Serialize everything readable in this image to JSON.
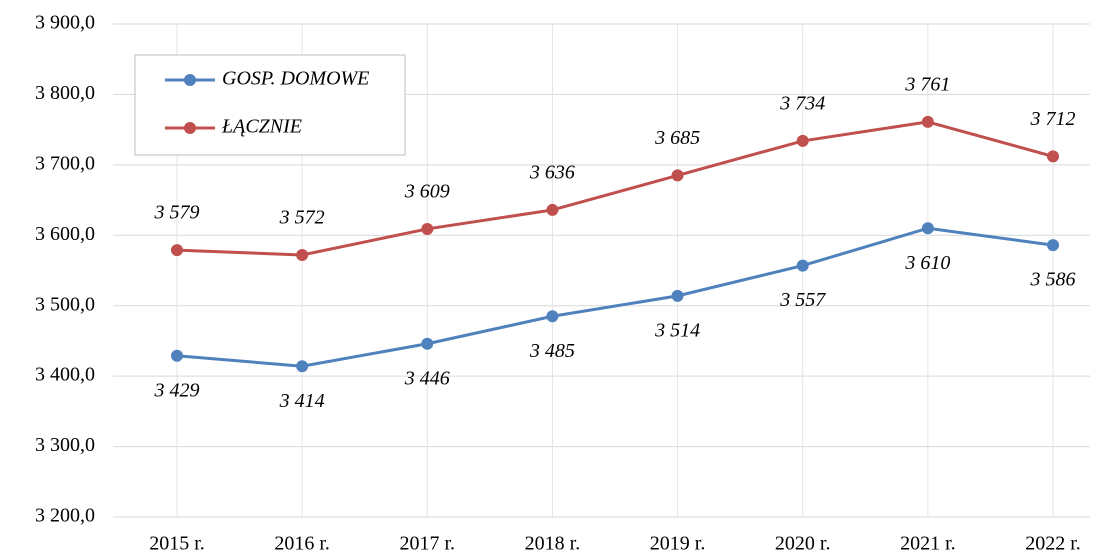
{
  "chart_data": {
    "type": "line",
    "categories": [
      "2015 r.",
      "2016 r.",
      "2017 r.",
      "2018 r.",
      "2019 r.",
      "2020 r.",
      "2021 r.",
      "2022 r."
    ],
    "series": [
      {
        "name": "GOSP. DOMOWE",
        "color": "#4f81bd",
        "values": [
          3429,
          3414,
          3446,
          3485,
          3514,
          3557,
          3610,
          3586
        ],
        "value_labels": [
          "3 429",
          "3 414",
          "3 446",
          "3 485",
          "3 514",
          "3 557",
          "3 610",
          "3 586"
        ]
      },
      {
        "name": "ŁĄCZNIE",
        "color": "#c0504d",
        "values": [
          3579,
          3572,
          3609,
          3636,
          3685,
          3734,
          3761,
          3712
        ],
        "value_labels": [
          "3 579",
          "3 572",
          "3 609",
          "3 636",
          "3 685",
          "3 734",
          "3 761",
          "3 712"
        ]
      }
    ],
    "ylim": [
      3200,
      3900
    ],
    "yticks": [
      {
        "value": 3200,
        "label": "3 200,0"
      },
      {
        "value": 3300,
        "label": "3 300,0"
      },
      {
        "value": 3400,
        "label": "3 400,0"
      },
      {
        "value": 3500,
        "label": "3 500,0"
      },
      {
        "value": 3600,
        "label": "3 600,0"
      },
      {
        "value": 3700,
        "label": "3 700,0"
      },
      {
        "value": 3800,
        "label": "3 800,0"
      },
      {
        "value": 3900,
        "label": "3 900,0"
      }
    ],
    "grid": true
  }
}
